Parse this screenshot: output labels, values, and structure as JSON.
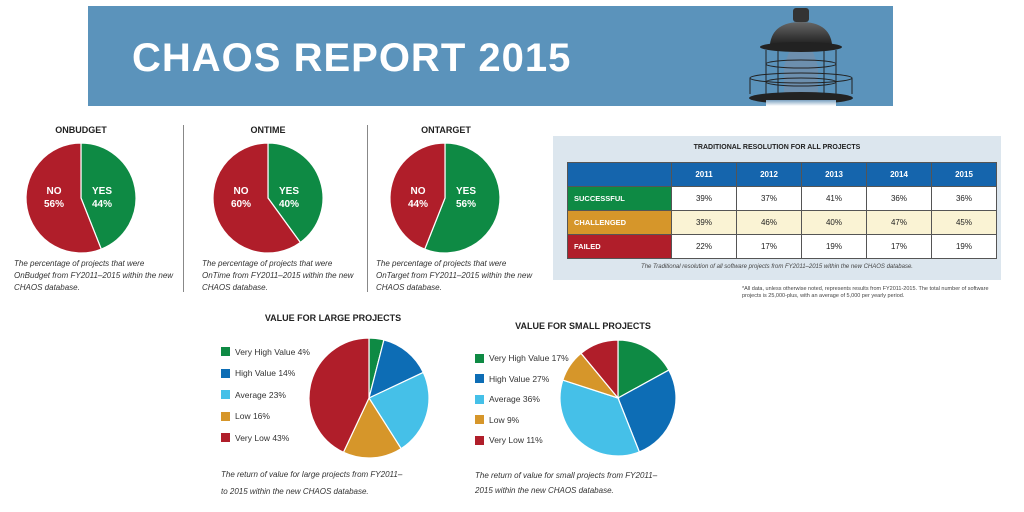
{
  "banner": {
    "title": "CHAOS REPORT 2015",
    "color": "#5b93bb",
    "image": "lighthouse-lantern-illustration"
  },
  "colors": {
    "green": "#0e8a44",
    "red": "#b01e2a",
    "blue": "#0d6db5",
    "light_blue": "#45c0e8",
    "orange": "#d6962a",
    "header_blue": "#1565ad"
  },
  "chart_data": [
    {
      "type": "pie",
      "title": "ONBUDGET",
      "slices": [
        {
          "label": "YES",
          "value": 44
        },
        {
          "label": "NO",
          "value": 56
        }
      ],
      "caption": "The percentage of projects that were OnBudget from FY2011–2015 within the new CHAOS database."
    },
    {
      "type": "pie",
      "title": "ONTIME",
      "slices": [
        {
          "label": "YES",
          "value": 40
        },
        {
          "label": "NO",
          "value": 60
        }
      ],
      "caption": "The percentage of projects that were OnTime from FY2011–2015 within the new CHAOS database."
    },
    {
      "type": "pie",
      "title": "ONTARGET",
      "slices": [
        {
          "label": "YES",
          "value": 56
        },
        {
          "label": "NO",
          "value": 44
        }
      ],
      "caption": "The percentage of projects that were OnTarget from FY2011–2015 within the new CHAOS database."
    },
    {
      "type": "table",
      "title": "TRADITIONAL RESOLUTION FOR ALL PROJECTS",
      "columns": [
        "2011",
        "2012",
        "2013",
        "2014",
        "2015"
      ],
      "rows": [
        {
          "label": "SUCCESSFUL",
          "values": [
            "39%",
            "37%",
            "41%",
            "36%",
            "36%"
          ]
        },
        {
          "label": "CHALLENGED",
          "values": [
            "39%",
            "46%",
            "40%",
            "47%",
            "45%"
          ]
        },
        {
          "label": "FAILED",
          "values": [
            "22%",
            "17%",
            "19%",
            "17%",
            "19%"
          ]
        }
      ],
      "caption": "The Traditional resolution of all software projects from FY2011–2015 within the new CHAOS database.",
      "footnote": "*All data, unless otherwise noted, represents results from FY2011-2015. The total number of software projects is 25,000-plus, with an average of 5,000 per yearly period."
    },
    {
      "type": "pie",
      "title": "VALUE FOR LARGE PROJECTS",
      "legend": "left",
      "slices": [
        {
          "label": "Very High Value 4%",
          "value": 4
        },
        {
          "label": "High Value 14%",
          "value": 14
        },
        {
          "label": "Average 23%",
          "value": 23
        },
        {
          "label": "Low 16%",
          "value": 16
        },
        {
          "label": "Very Low 43%",
          "value": 43
        }
      ],
      "caption_lines": [
        "The return of value for large projects from FY2011–",
        "to 2015 within the new CHAOS database."
      ]
    },
    {
      "type": "pie",
      "title": "VALUE FOR SMALL PROJECTS",
      "legend": "left",
      "slices": [
        {
          "label": "Very High Value 17%",
          "value": 17
        },
        {
          "label": "High Value 27%",
          "value": 27
        },
        {
          "label": "Average 36%",
          "value": 36
        },
        {
          "label": "Low 9%",
          "value": 9
        },
        {
          "label": "Very Low 11%",
          "value": 11
        }
      ],
      "caption_lines": [
        "The return of value for small projects from FY2011–",
        "2015 within the new CHAOS database."
      ]
    }
  ]
}
